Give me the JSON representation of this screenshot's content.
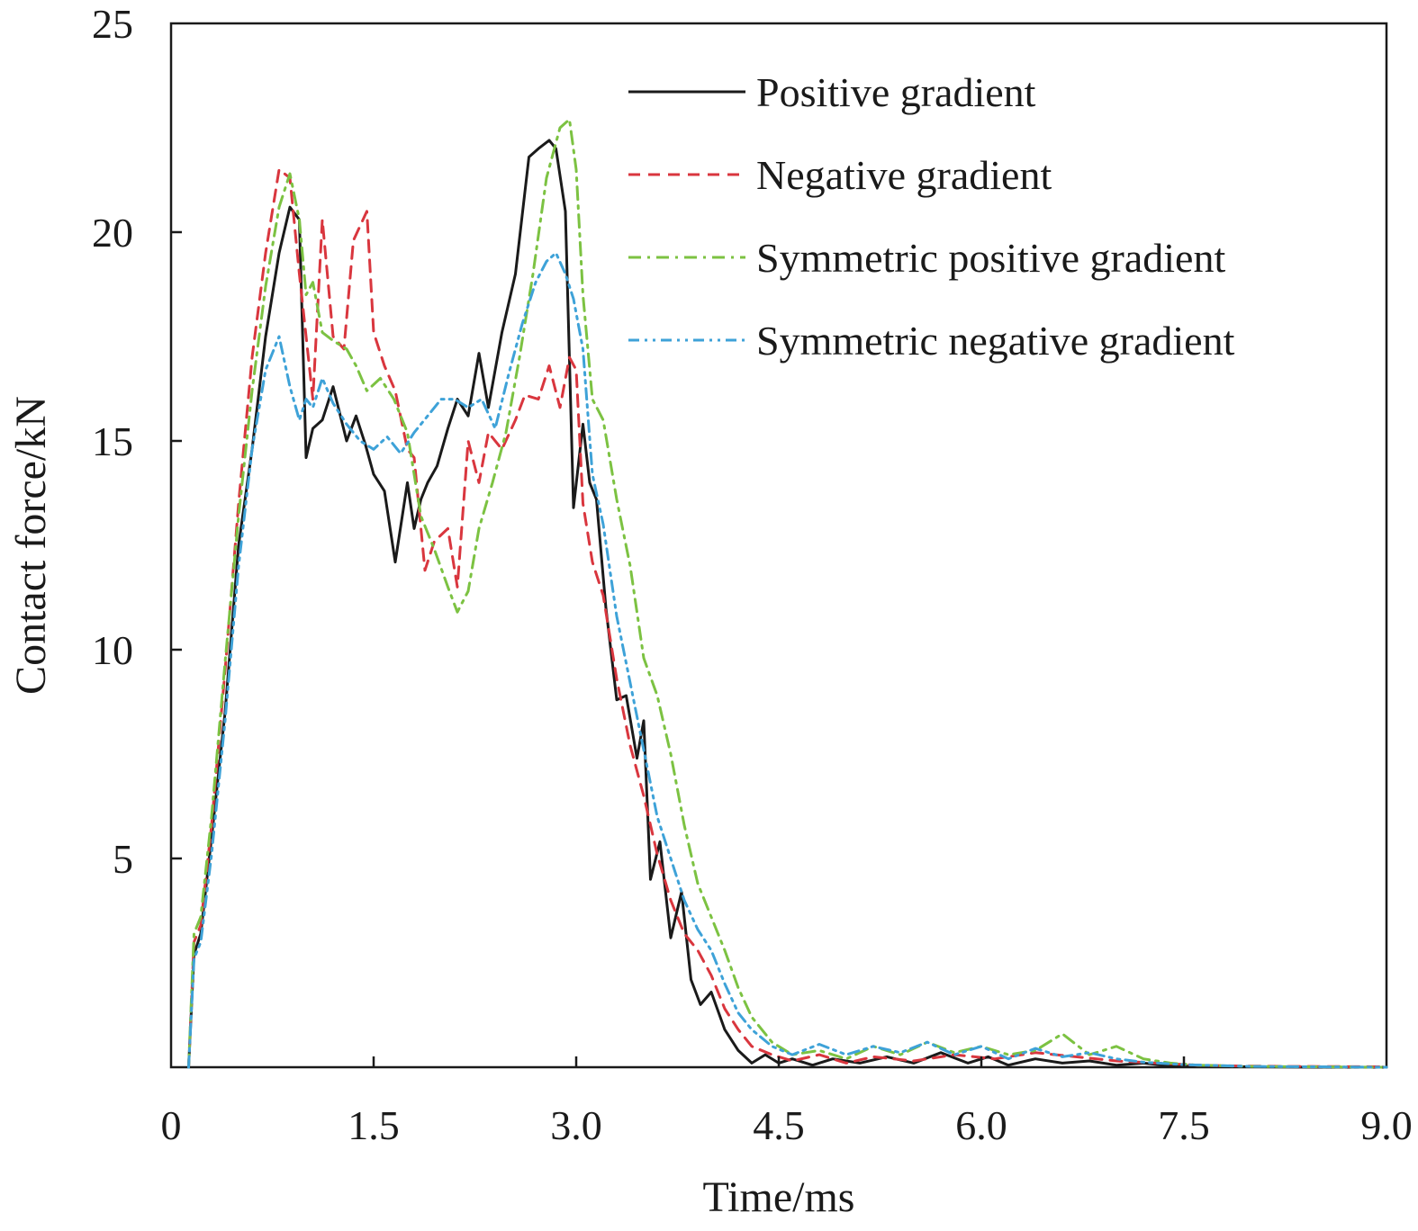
{
  "chart_data": {
    "type": "line",
    "title": "",
    "xlabel": "Time/ms",
    "ylabel": "Contact force/kN",
    "xlim": [
      0,
      9.0
    ],
    "ylim": [
      0,
      25
    ],
    "x_tick_labels": [
      "0",
      "1.5",
      "3.0",
      "4.5",
      "6.0",
      "7.5",
      "9.0"
    ],
    "y_tick_labels": [
      "5",
      "10",
      "15",
      "20",
      "25"
    ],
    "x_ticks": [
      0,
      1.5,
      3.0,
      4.5,
      6.0,
      7.5,
      9.0
    ],
    "y_ticks": [
      5,
      10,
      15,
      20,
      25
    ],
    "grid": false,
    "legend_position": "top-right",
    "series": [
      {
        "name": "Positive gradient",
        "color": "#1a1a1a",
        "dash": "solid",
        "x": [
          0.13,
          0.17,
          0.22,
          0.3,
          0.4,
          0.5,
          0.6,
          0.7,
          0.8,
          0.88,
          0.95,
          1.0,
          1.05,
          1.12,
          1.2,
          1.3,
          1.37,
          1.44,
          1.5,
          1.58,
          1.66,
          1.75,
          1.8,
          1.85,
          1.9,
          1.97,
          2.05,
          2.12,
          2.2,
          2.28,
          2.35,
          2.45,
          2.55,
          2.65,
          2.72,
          2.8,
          2.85,
          2.92,
          2.98,
          3.05,
          3.1,
          3.15,
          3.22,
          3.3,
          3.37,
          3.45,
          3.5,
          3.55,
          3.62,
          3.7,
          3.78,
          3.85,
          3.92,
          4.0,
          4.1,
          4.2,
          4.3,
          4.4,
          4.5,
          4.6,
          4.75,
          4.9,
          5.1,
          5.3,
          5.5,
          5.7,
          5.9,
          6.05,
          6.2,
          6.4,
          6.6,
          6.8,
          7.0,
          7.2,
          7.4,
          7.6,
          8.0,
          8.5,
          9.0
        ],
        "values": [
          0,
          2.7,
          3.2,
          5.5,
          8.5,
          12.5,
          14.8,
          17.5,
          19.5,
          20.6,
          20.3,
          14.6,
          15.3,
          15.5,
          16.3,
          15.0,
          15.6,
          14.9,
          14.2,
          13.8,
          12.1,
          14.0,
          12.9,
          13.6,
          14.0,
          14.4,
          15.3,
          16.0,
          15.6,
          17.1,
          15.8,
          17.6,
          19.0,
          21.8,
          22.0,
          22.2,
          22.0,
          20.5,
          13.4,
          15.4,
          14.0,
          13.6,
          11.0,
          8.8,
          8.9,
          7.4,
          8.3,
          4.5,
          5.4,
          3.1,
          4.2,
          2.1,
          1.5,
          1.8,
          0.9,
          0.4,
          0.1,
          0.3,
          0.1,
          0.2,
          0.05,
          0.2,
          0.1,
          0.25,
          0.1,
          0.35,
          0.1,
          0.25,
          0.05,
          0.2,
          0.1,
          0.15,
          0.05,
          0.1,
          0.03,
          0.02,
          0.01,
          0.0,
          0.0
        ]
      },
      {
        "name": "Negative gradient",
        "color": "#d9363e",
        "dash": "dashed",
        "x": [
          0.13,
          0.17,
          0.22,
          0.3,
          0.4,
          0.5,
          0.6,
          0.7,
          0.8,
          0.88,
          0.95,
          1.0,
          1.05,
          1.12,
          1.2,
          1.28,
          1.35,
          1.45,
          1.5,
          1.58,
          1.66,
          1.75,
          1.8,
          1.88,
          1.95,
          2.05,
          2.12,
          2.2,
          2.28,
          2.35,
          2.45,
          2.55,
          2.62,
          2.72,
          2.8,
          2.88,
          2.95,
          3.0,
          3.05,
          3.12,
          3.2,
          3.3,
          3.4,
          3.5,
          3.6,
          3.7,
          3.8,
          3.9,
          4.0,
          4.1,
          4.2,
          4.3,
          4.45,
          4.6,
          4.8,
          5.0,
          5.2,
          5.5,
          5.8,
          6.1,
          6.4,
          6.7,
          7.0,
          7.3,
          7.6,
          7.9,
          8.3,
          9.0
        ],
        "values": [
          0,
          3.0,
          3.4,
          5.8,
          9.5,
          13.5,
          17.0,
          19.5,
          21.5,
          21.3,
          19.0,
          17.5,
          16.0,
          20.3,
          17.5,
          17.2,
          19.8,
          20.5,
          17.6,
          16.8,
          16.2,
          14.8,
          14.6,
          11.9,
          12.6,
          12.9,
          11.5,
          15.0,
          14.0,
          15.2,
          14.8,
          15.5,
          16.1,
          16.0,
          16.8,
          15.8,
          17.0,
          16.7,
          13.5,
          12.1,
          11.3,
          9.3,
          7.7,
          6.5,
          5.1,
          4.0,
          3.2,
          2.8,
          2.2,
          1.4,
          0.9,
          0.5,
          0.3,
          0.15,
          0.3,
          0.1,
          0.25,
          0.15,
          0.3,
          0.2,
          0.35,
          0.25,
          0.15,
          0.1,
          0.05,
          0.03,
          0.02,
          0.01
        ]
      },
      {
        "name": "Symmetric positive gradient",
        "color": "#7cc242",
        "dash": "dashdot",
        "x": [
          0.13,
          0.17,
          0.22,
          0.3,
          0.4,
          0.5,
          0.6,
          0.7,
          0.8,
          0.88,
          0.95,
          1.0,
          1.05,
          1.12,
          1.2,
          1.3,
          1.37,
          1.45,
          1.55,
          1.65,
          1.75,
          1.85,
          1.95,
          2.05,
          2.12,
          2.2,
          2.28,
          2.38,
          2.48,
          2.58,
          2.68,
          2.78,
          2.88,
          2.95,
          3.0,
          3.05,
          3.12,
          3.2,
          3.3,
          3.4,
          3.5,
          3.6,
          3.7,
          3.8,
          3.9,
          4.0,
          4.1,
          4.2,
          4.3,
          4.45,
          4.6,
          4.8,
          5.0,
          5.2,
          5.4,
          5.6,
          5.8,
          6.0,
          6.2,
          6.4,
          6.6,
          6.8,
          7.0,
          7.2,
          7.4,
          7.6,
          8.0,
          9.0
        ],
        "values": [
          0,
          3.2,
          3.6,
          6.0,
          9.7,
          13.2,
          16.2,
          18.7,
          20.6,
          21.4,
          20.3,
          18.5,
          18.8,
          17.6,
          17.4,
          17.2,
          16.8,
          16.2,
          16.5,
          16.0,
          15.2,
          13.2,
          12.4,
          11.5,
          10.9,
          11.4,
          12.9,
          14.0,
          15.2,
          17.0,
          19.0,
          21.3,
          22.5,
          22.7,
          21.5,
          18.5,
          16.0,
          15.5,
          13.6,
          12.0,
          9.8,
          8.9,
          7.5,
          5.8,
          4.4,
          3.6,
          2.8,
          1.9,
          1.2,
          0.6,
          0.3,
          0.4,
          0.2,
          0.5,
          0.3,
          0.6,
          0.35,
          0.5,
          0.3,
          0.4,
          0.8,
          0.3,
          0.5,
          0.2,
          0.1,
          0.05,
          0.02,
          0.0
        ]
      },
      {
        "name": "Symmetric negative gradient",
        "color": "#3ea2d8",
        "dash": "dashdotdot",
        "x": [
          0.13,
          0.17,
          0.22,
          0.3,
          0.4,
          0.5,
          0.6,
          0.7,
          0.8,
          0.88,
          0.95,
          1.0,
          1.05,
          1.12,
          1.2,
          1.3,
          1.4,
          1.5,
          1.6,
          1.7,
          1.8,
          1.9,
          2.0,
          2.1,
          2.2,
          2.3,
          2.4,
          2.5,
          2.6,
          2.7,
          2.78,
          2.85,
          2.92,
          2.98,
          3.05,
          3.12,
          3.2,
          3.3,
          3.4,
          3.5,
          3.6,
          3.7,
          3.8,
          3.9,
          4.0,
          4.1,
          4.2,
          4.3,
          4.45,
          4.6,
          4.8,
          5.0,
          5.2,
          5.4,
          5.6,
          5.8,
          6.0,
          6.2,
          6.4,
          6.6,
          6.8,
          7.0,
          7.2,
          7.5,
          8.0,
          9.0
        ],
        "values": [
          0,
          2.6,
          3.0,
          5.1,
          8.3,
          12.0,
          14.8,
          16.7,
          17.5,
          16.3,
          15.5,
          16.0,
          15.8,
          16.5,
          15.9,
          15.4,
          15.0,
          14.8,
          15.1,
          14.7,
          15.2,
          15.6,
          16.0,
          16.0,
          15.8,
          16.0,
          15.3,
          16.6,
          17.8,
          18.8,
          19.3,
          19.5,
          19.0,
          18.4,
          17.2,
          14.2,
          13.0,
          10.8,
          9.2,
          7.6,
          6.0,
          5.0,
          4.0,
          3.3,
          2.8,
          2.0,
          1.3,
          0.9,
          0.5,
          0.3,
          0.55,
          0.3,
          0.5,
          0.35,
          0.6,
          0.3,
          0.5,
          0.2,
          0.45,
          0.25,
          0.35,
          0.2,
          0.12,
          0.06,
          0.02,
          0.0
        ]
      }
    ]
  }
}
